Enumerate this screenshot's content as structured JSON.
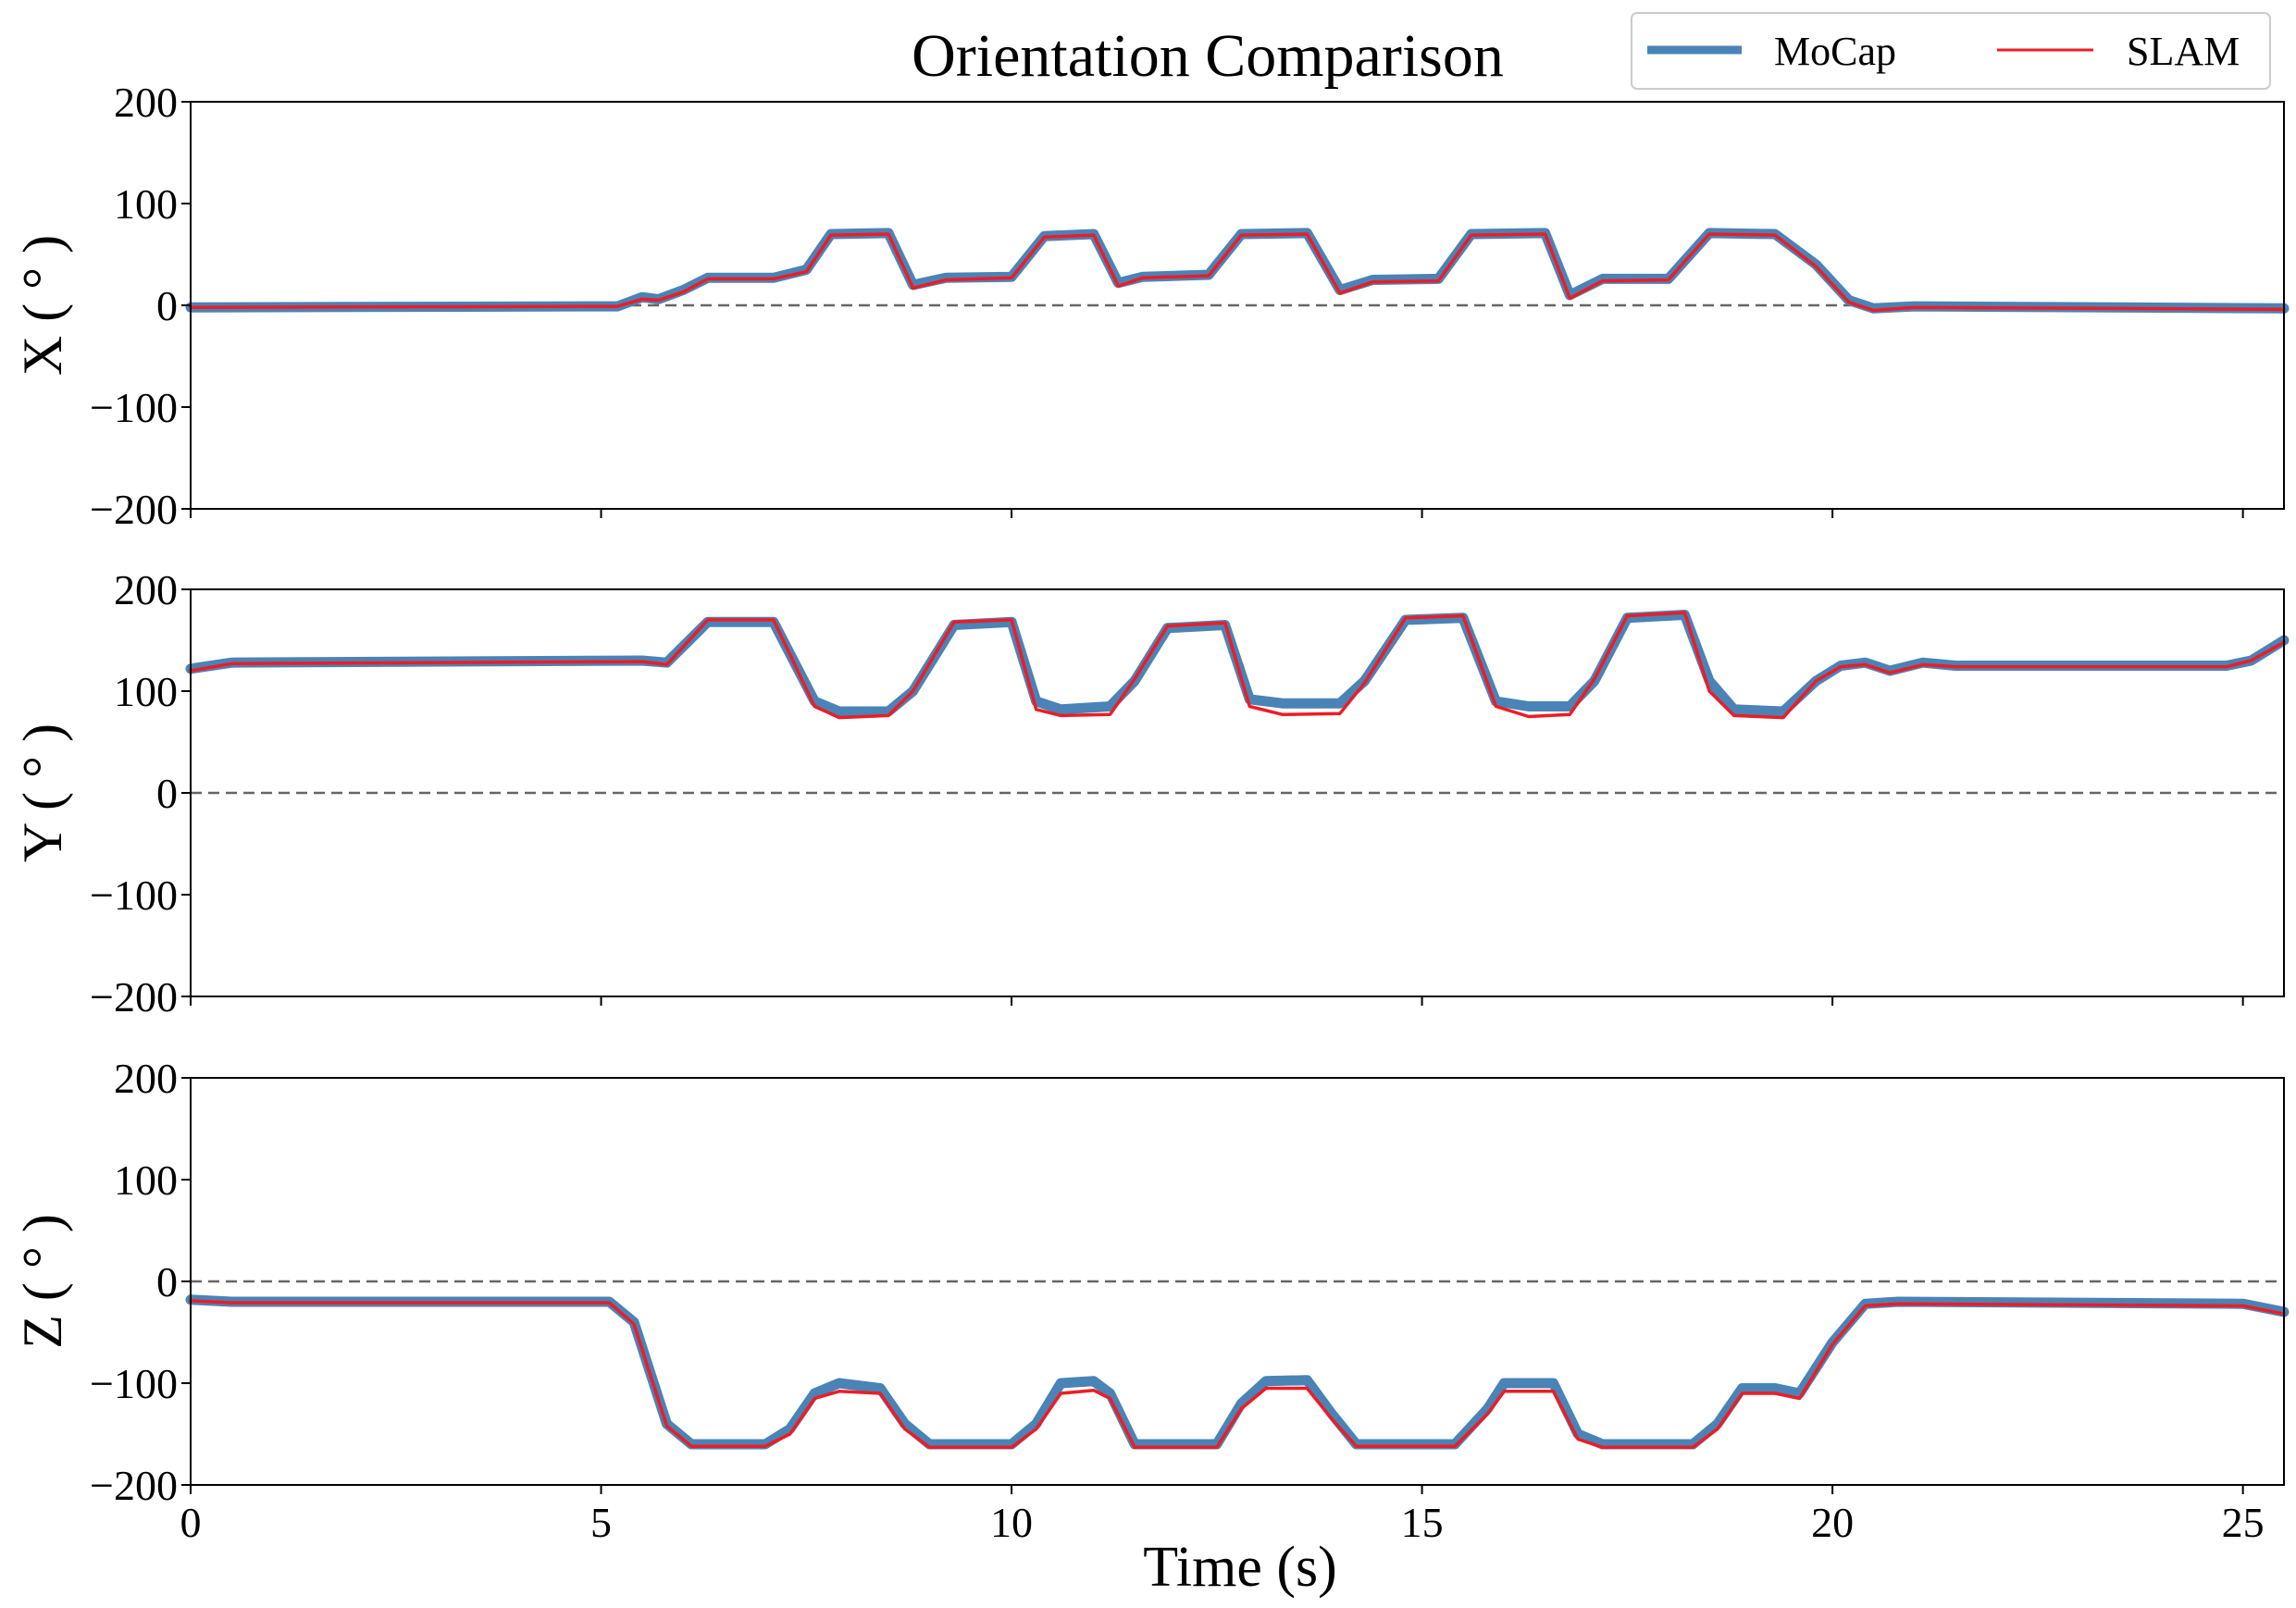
{
  "chart_data": {
    "type": "line",
    "title": "Orientation Comparison",
    "xlabel": "Time (s)",
    "xlim": [
      0,
      25.5
    ],
    "xticks": [
      0,
      5,
      10,
      15,
      20,
      25
    ],
    "xtick_labels": [
      "0",
      "5",
      "10",
      "15",
      "20",
      "25"
    ],
    "legend": {
      "placement": "top-right",
      "entries": [
        {
          "name": "MoCap",
          "color": "#4a83b6"
        },
        {
          "name": "SLAM",
          "color": "#ee1c24"
        }
      ]
    },
    "reference_line": {
      "y": 0,
      "style": "dashed",
      "color": "#666666"
    },
    "panels": [
      {
        "ylabel": "X ( ° )",
        "ylim": [
          -200,
          200
        ],
        "yticks": [
          200,
          100,
          0,
          -100,
          -200
        ],
        "ytick_labels": [
          "200",
          "100",
          "0",
          "−100",
          "−200"
        ],
        "series": [
          {
            "name": "MoCap",
            "points": [
              [
                0,
                -2
              ],
              [
                5.2,
                -1
              ],
              [
                5.5,
                8
              ],
              [
                5.7,
                6
              ],
              [
                6.0,
                15
              ],
              [
                6.3,
                27
              ],
              [
                7.1,
                27
              ],
              [
                7.5,
                35
              ],
              [
                7.8,
                70
              ],
              [
                8.5,
                71
              ],
              [
                8.8,
                20
              ],
              [
                9.2,
                27
              ],
              [
                10.0,
                28
              ],
              [
                10.4,
                68
              ],
              [
                11.0,
                70
              ],
              [
                11.3,
                22
              ],
              [
                11.6,
                28
              ],
              [
                12.4,
                30
              ],
              [
                12.8,
                70
              ],
              [
                13.6,
                71
              ],
              [
                14.0,
                15
              ],
              [
                14.4,
                25
              ],
              [
                15.2,
                26
              ],
              [
                15.6,
                70
              ],
              [
                16.5,
                71
              ],
              [
                16.8,
                10
              ],
              [
                17.2,
                26
              ],
              [
                18.0,
                26
              ],
              [
                18.5,
                71
              ],
              [
                19.3,
                70
              ],
              [
                19.8,
                40
              ],
              [
                20.2,
                5
              ],
              [
                20.5,
                -3
              ],
              [
                21.0,
                -1
              ],
              [
                25.5,
                -3
              ]
            ]
          },
          {
            "name": "SLAM",
            "points": [
              [
                0,
                -2
              ],
              [
                5.2,
                -1
              ],
              [
                5.5,
                6
              ],
              [
                5.7,
                5
              ],
              [
                6.0,
                13
              ],
              [
                6.3,
                26
              ],
              [
                7.1,
                26
              ],
              [
                7.5,
                33
              ],
              [
                7.8,
                69
              ],
              [
                8.5,
                70
              ],
              [
                8.8,
                17
              ],
              [
                9.2,
                25
              ],
              [
                10.0,
                27
              ],
              [
                10.4,
                67
              ],
              [
                11.0,
                69
              ],
              [
                11.3,
                19
              ],
              [
                11.6,
                27
              ],
              [
                12.4,
                29
              ],
              [
                12.8,
                69
              ],
              [
                13.6,
                70
              ],
              [
                14.0,
                12
              ],
              [
                14.4,
                23
              ],
              [
                15.2,
                24
              ],
              [
                15.6,
                69
              ],
              [
                16.5,
                70
              ],
              [
                16.8,
                7
              ],
              [
                17.2,
                24
              ],
              [
                18.0,
                25
              ],
              [
                18.5,
                70
              ],
              [
                19.3,
                69
              ],
              [
                19.8,
                38
              ],
              [
                20.2,
                3
              ],
              [
                20.5,
                -5
              ],
              [
                21.0,
                -2
              ],
              [
                25.5,
                -4
              ]
            ]
          }
        ]
      },
      {
        "ylabel": "Y ( ° )",
        "ylim": [
          -200,
          200
        ],
        "yticks": [
          200,
          100,
          0,
          -100,
          -200
        ],
        "ytick_labels": [
          "200",
          "100",
          "0",
          "−100",
          "−200"
        ],
        "series": [
          {
            "name": "MoCap",
            "points": [
              [
                0,
                122
              ],
              [
                0.5,
                128
              ],
              [
                5.5,
                130
              ],
              [
                5.8,
                128
              ],
              [
                6.3,
                168
              ],
              [
                7.1,
                168
              ],
              [
                7.6,
                90
              ],
              [
                7.9,
                80
              ],
              [
                8.5,
                80
              ],
              [
                8.8,
                100
              ],
              [
                9.3,
                165
              ],
              [
                10.0,
                168
              ],
              [
                10.3,
                90
              ],
              [
                10.6,
                82
              ],
              [
                11.2,
                85
              ],
              [
                11.5,
                110
              ],
              [
                11.9,
                162
              ],
              [
                12.6,
                165
              ],
              [
                12.9,
                92
              ],
              [
                13.3,
                88
              ],
              [
                14.0,
                88
              ],
              [
                14.3,
                110
              ],
              [
                14.8,
                170
              ],
              [
                15.5,
                172
              ],
              [
                15.9,
                90
              ],
              [
                16.3,
                85
              ],
              [
                16.8,
                85
              ],
              [
                17.1,
                110
              ],
              [
                17.5,
                172
              ],
              [
                18.2,
                175
              ],
              [
                18.5,
                110
              ],
              [
                18.8,
                82
              ],
              [
                19.4,
                80
              ],
              [
                19.8,
                110
              ],
              [
                20.1,
                125
              ],
              [
                20.4,
                128
              ],
              [
                20.7,
                120
              ],
              [
                21.1,
                128
              ],
              [
                21.5,
                125
              ],
              [
                24.8,
                125
              ],
              [
                25.1,
                130
              ],
              [
                25.5,
                150
              ]
            ]
          },
          {
            "name": "SLAM",
            "points": [
              [
                0,
                120
              ],
              [
                0.5,
                127
              ],
              [
                5.5,
                129
              ],
              [
                5.8,
                126
              ],
              [
                6.3,
                170
              ],
              [
                7.1,
                170
              ],
              [
                7.6,
                85
              ],
              [
                7.9,
                74
              ],
              [
                8.5,
                76
              ],
              [
                8.8,
                100
              ],
              [
                9.3,
                168
              ],
              [
                10.0,
                170
              ],
              [
                10.3,
                82
              ],
              [
                10.6,
                76
              ],
              [
                11.2,
                77
              ],
              [
                11.5,
                112
              ],
              [
                11.9,
                164
              ],
              [
                12.6,
                167
              ],
              [
                12.9,
                85
              ],
              [
                13.3,
                77
              ],
              [
                14.0,
                78
              ],
              [
                14.3,
                108
              ],
              [
                14.8,
                172
              ],
              [
                15.5,
                174
              ],
              [
                15.9,
                85
              ],
              [
                16.3,
                75
              ],
              [
                16.8,
                77
              ],
              [
                17.1,
                112
              ],
              [
                17.5,
                174
              ],
              [
                18.2,
                177
              ],
              [
                18.5,
                100
              ],
              [
                18.8,
                76
              ],
              [
                19.4,
                74
              ],
              [
                19.8,
                110
              ],
              [
                20.1,
                124
              ],
              [
                20.4,
                126
              ],
              [
                20.7,
                118
              ],
              [
                21.1,
                126
              ],
              [
                21.5,
                124
              ],
              [
                24.8,
                124
              ],
              [
                25.1,
                130
              ],
              [
                25.5,
                148
              ]
            ]
          }
        ]
      },
      {
        "ylabel": "Z ( ° )",
        "ylim": [
          -200,
          200
        ],
        "yticks": [
          200,
          100,
          0,
          -100,
          -200
        ],
        "ytick_labels": [
          "200",
          "100",
          "0",
          "−100",
          "−200"
        ],
        "series": [
          {
            "name": "MoCap",
            "points": [
              [
                0,
                -18
              ],
              [
                0.5,
                -20
              ],
              [
                5.1,
                -20
              ],
              [
                5.4,
                -40
              ],
              [
                5.8,
                -140
              ],
              [
                6.1,
                -160
              ],
              [
                7.0,
                -160
              ],
              [
                7.3,
                -145
              ],
              [
                7.6,
                -110
              ],
              [
                7.9,
                -100
              ],
              [
                8.4,
                -105
              ],
              [
                8.7,
                -140
              ],
              [
                9.0,
                -160
              ],
              [
                10.0,
                -160
              ],
              [
                10.3,
                -140
              ],
              [
                10.6,
                -100
              ],
              [
                11.0,
                -98
              ],
              [
                11.2,
                -110
              ],
              [
                11.5,
                -160
              ],
              [
                12.5,
                -160
              ],
              [
                12.8,
                -120
              ],
              [
                13.1,
                -98
              ],
              [
                13.6,
                -97
              ],
              [
                13.9,
                -130
              ],
              [
                14.2,
                -160
              ],
              [
                15.4,
                -160
              ],
              [
                15.8,
                -125
              ],
              [
                16.0,
                -100
              ],
              [
                16.6,
                -100
              ],
              [
                16.9,
                -150
              ],
              [
                17.2,
                -160
              ],
              [
                18.3,
                -160
              ],
              [
                18.6,
                -140
              ],
              [
                18.9,
                -105
              ],
              [
                19.3,
                -105
              ],
              [
                19.6,
                -110
              ],
              [
                20.0,
                -60
              ],
              [
                20.4,
                -22
              ],
              [
                20.8,
                -20
              ],
              [
                25.0,
                -22
              ],
              [
                25.5,
                -30
              ]
            ]
          },
          {
            "name": "SLAM",
            "points": [
              [
                0,
                -19
              ],
              [
                0.5,
                -21
              ],
              [
                5.1,
                -21
              ],
              [
                5.4,
                -42
              ],
              [
                5.8,
                -142
              ],
              [
                6.1,
                -162
              ],
              [
                7.0,
                -162
              ],
              [
                7.3,
                -150
              ],
              [
                7.6,
                -115
              ],
              [
                7.9,
                -108
              ],
              [
                8.4,
                -110
              ],
              [
                8.7,
                -145
              ],
              [
                9.0,
                -163
              ],
              [
                10.0,
                -163
              ],
              [
                10.3,
                -145
              ],
              [
                10.6,
                -110
              ],
              [
                11.0,
                -107
              ],
              [
                11.2,
                -115
              ],
              [
                11.5,
                -163
              ],
              [
                12.5,
                -163
              ],
              [
                12.8,
                -125
              ],
              [
                13.1,
                -105
              ],
              [
                13.6,
                -105
              ],
              [
                13.9,
                -135
              ],
              [
                14.2,
                -162
              ],
              [
                15.4,
                -162
              ],
              [
                15.8,
                -130
              ],
              [
                16.0,
                -108
              ],
              [
                16.6,
                -108
              ],
              [
                16.9,
                -155
              ],
              [
                17.2,
                -163
              ],
              [
                18.3,
                -163
              ],
              [
                18.6,
                -145
              ],
              [
                18.9,
                -110
              ],
              [
                19.3,
                -110
              ],
              [
                19.6,
                -115
              ],
              [
                20.0,
                -62
              ],
              [
                20.4,
                -24
              ],
              [
                20.8,
                -22
              ],
              [
                25.0,
                -24
              ],
              [
                25.5,
                -32
              ]
            ]
          }
        ]
      }
    ]
  }
}
